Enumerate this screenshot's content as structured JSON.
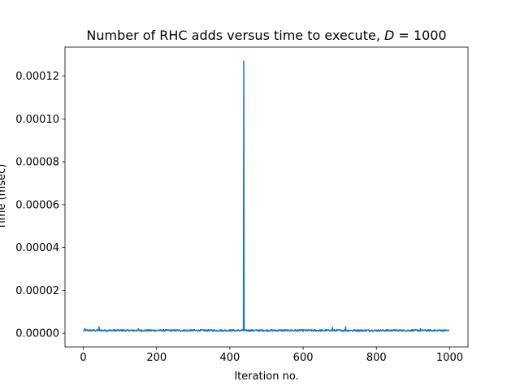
{
  "chart_data": {
    "type": "line",
    "title_prefix": "Number of RHC adds versus time to execute, ",
    "title_var": "D",
    "title_suffix": " = 1000",
    "xlabel": "Iteration no.",
    "ylabel": "Time (msec)",
    "xlim": [
      -50,
      1050
    ],
    "ylim": [
      -6.4e-06,
      0.0001335
    ],
    "xticks": [
      0,
      200,
      400,
      600,
      800,
      1000
    ],
    "xtick_labels": [
      "0",
      "200",
      "400",
      "600",
      "800",
      "1000"
    ],
    "yticks": [
      0,
      2e-05,
      4e-05,
      6e-05,
      8e-05,
      0.0001,
      0.00012
    ],
    "ytick_labels": [
      "0.00000",
      "0.00002",
      "0.00004",
      "0.00006",
      "0.00008",
      "0.00010",
      "0.00012"
    ],
    "grid": false,
    "series_color": "#1f77b4",
    "baseline": 1.3e-06,
    "baseline_jitter": 4e-07,
    "spike": {
      "x": 438,
      "y": 0.000127
    },
    "bumps": [
      {
        "x": 5,
        "y": 2.2e-06
      },
      {
        "x": 43,
        "y": 3e-06
      },
      {
        "x": 150,
        "y": 2.1e-06
      },
      {
        "x": 680,
        "y": 2.8e-06
      },
      {
        "x": 716,
        "y": 3e-06
      },
      {
        "x": 920,
        "y": 2.1e-06
      }
    ],
    "n_points": 1000
  }
}
